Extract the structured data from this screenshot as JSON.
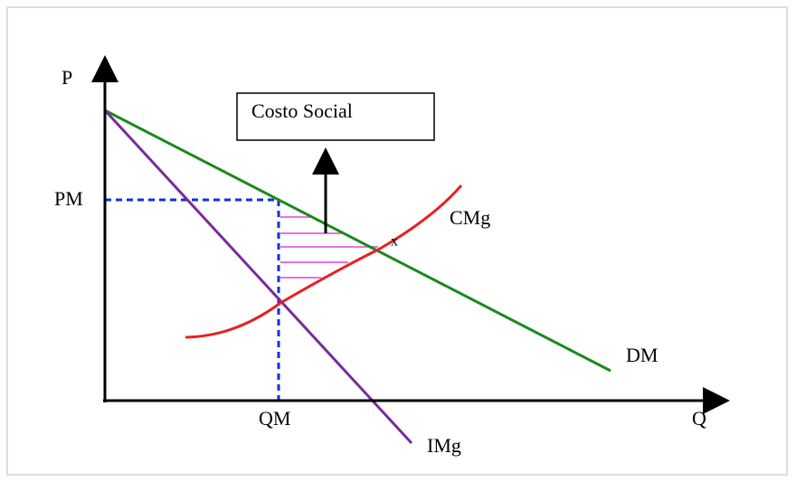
{
  "axes": {
    "y_label": "P",
    "x_label": "Q",
    "price_label": "PM",
    "quantity_label": "QM"
  },
  "box": {
    "label": "Costo Social"
  },
  "curves": {
    "marginal_cost": "CMg",
    "demand": "DM",
    "marginal_revenue": "IMg",
    "intersection": "x"
  }
}
